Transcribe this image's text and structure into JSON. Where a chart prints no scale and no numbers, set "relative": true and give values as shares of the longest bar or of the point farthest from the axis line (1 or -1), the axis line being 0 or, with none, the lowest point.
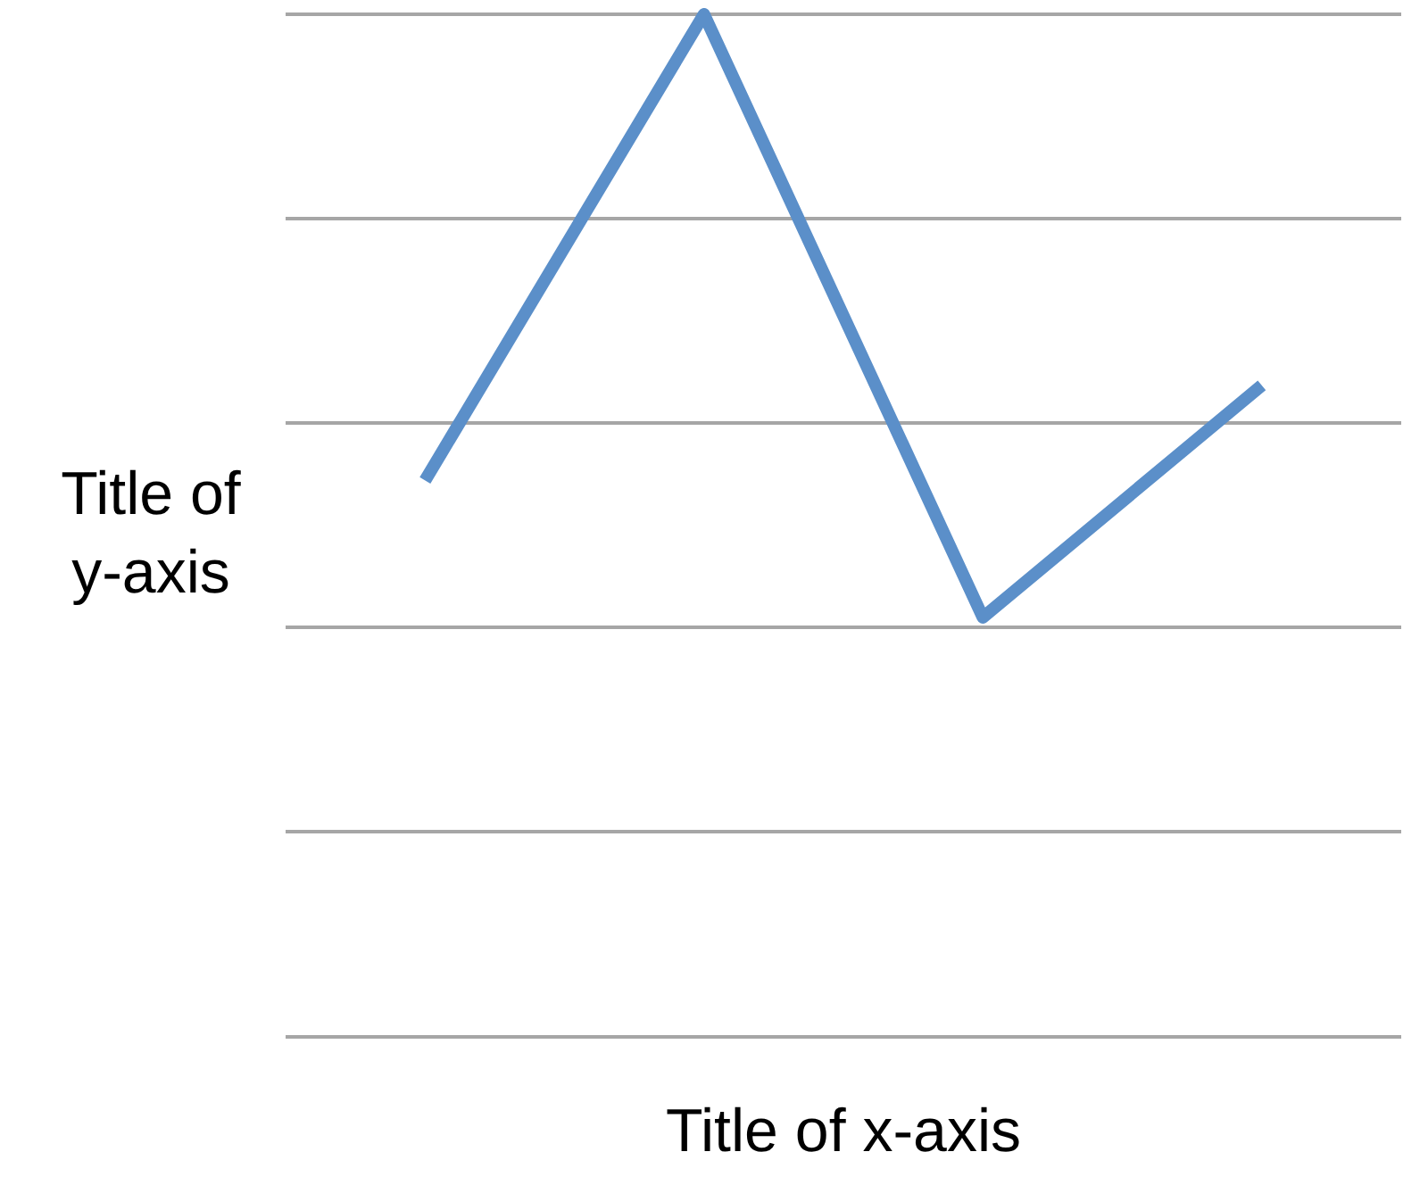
{
  "chart_data": {
    "type": "line",
    "xlabel": "Title of x-axis",
    "ylabel": "Title of y-axis",
    "relative": true,
    "categories": [
      null,
      null,
      null,
      null
    ],
    "series": [
      {
        "color": "#5b8fc9",
        "values": [
          0.544,
          1,
          0.41,
          0.637
        ]
      }
    ],
    "grid": "y",
    "legend": false,
    "marker": "none",
    "line_style": "solid"
  }
}
